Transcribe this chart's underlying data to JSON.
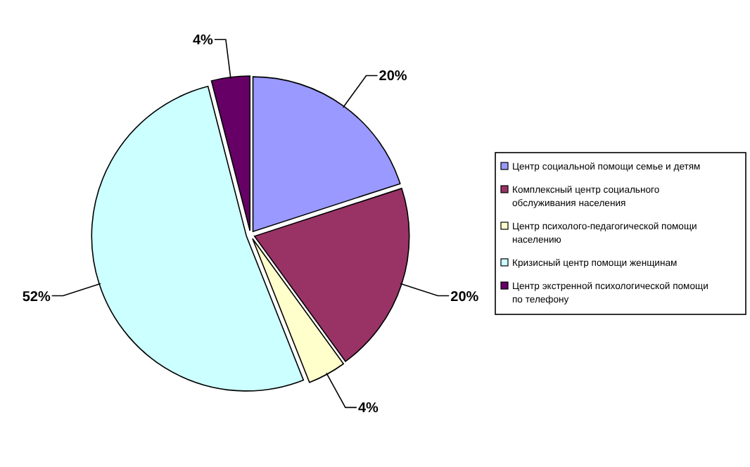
{
  "chart_data": {
    "type": "pie",
    "categories": [
      "Центр социальной помощи семье и детям",
      "Комплексный центр социального обслуживания населения",
      "Центр психолого-педагогической помощи населению",
      "Кризисный центр помощи женщинам",
      "Центр экстренной психологической помощи по телефону"
    ],
    "values": [
      20,
      20,
      4,
      52,
      4
    ],
    "value_labels": [
      "20%",
      "20%",
      "4%",
      "52%",
      "4%"
    ],
    "colors": [
      "#9999ff",
      "#993366",
      "#ffffcc",
      "#ccffff",
      "#660066"
    ],
    "legend": "right"
  }
}
